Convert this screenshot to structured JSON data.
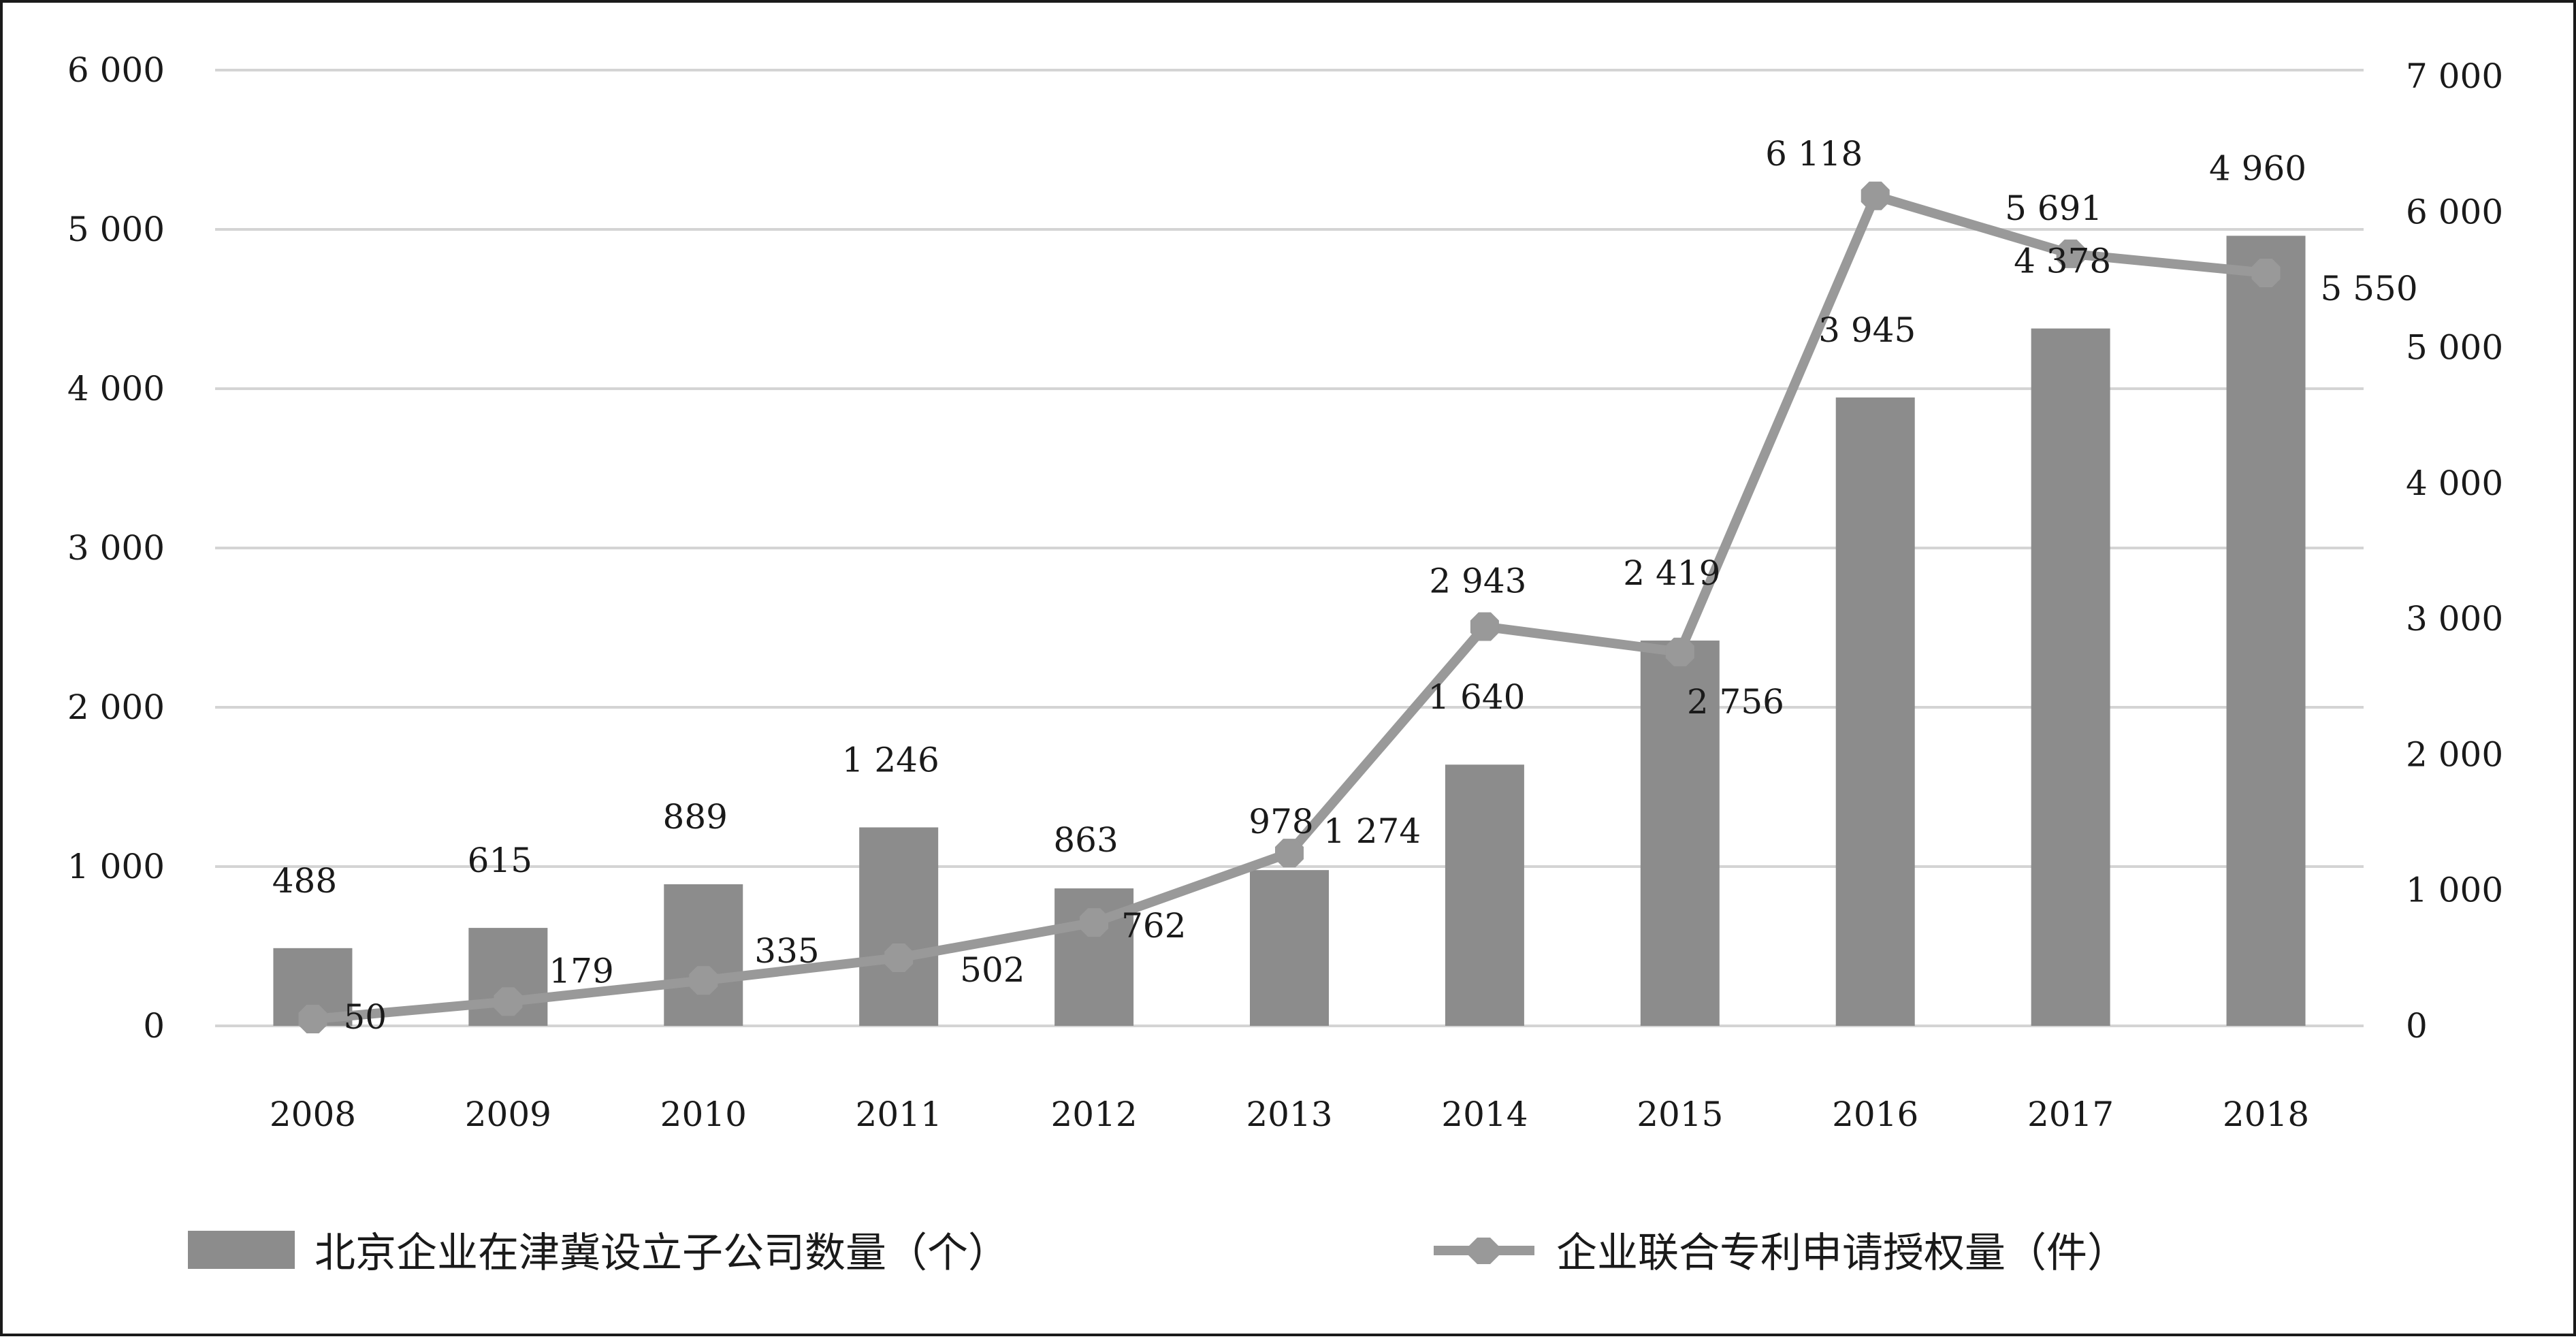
{
  "chart_data": {
    "type": "bar+line",
    "categories": [
      "2008",
      "2009",
      "2010",
      "2011",
      "2012",
      "2013",
      "2014",
      "2015",
      "2016",
      "2017",
      "2018"
    ],
    "series": [
      {
        "name": "北京企业在津冀设立子公司数量（个）",
        "type": "bar",
        "axis": "left",
        "color": "#8c8c8c",
        "values": [
          488,
          615,
          889,
          1246,
          863,
          978,
          1640,
          2419,
          3945,
          4378,
          4960
        ],
        "labels": [
          "488",
          "615",
          "889",
          "1 246",
          "863",
          "978",
          "1 640",
          "2 419",
          "3 945",
          "4 378",
          "4 960"
        ]
      },
      {
        "name": "企业联合专利申请授权量（件）",
        "type": "line",
        "axis": "right",
        "color": "#999999",
        "values": [
          50,
          179,
          335,
          502,
          762,
          1274,
          2943,
          2756,
          6118,
          5691,
          5550
        ],
        "labels": [
          "50",
          "179",
          "335",
          "502",
          "762",
          "1 274",
          "2 943",
          "2 756",
          "6 118",
          "5 691",
          "5 550"
        ]
      }
    ],
    "y_left": {
      "min": 0,
      "max": 6000,
      "ticks": [
        0,
        1000,
        2000,
        3000,
        4000,
        5000,
        6000
      ],
      "tick_labels": [
        "0",
        "1 000",
        "2 000",
        "3 000",
        "4 000",
        "5 000",
        "6 000"
      ]
    },
    "y_right": {
      "min": 0,
      "max": 7000,
      "ticks": [
        0,
        1000,
        2000,
        3000,
        4000,
        5000,
        6000,
        7000
      ],
      "tick_labels": [
        "0",
        "1 000",
        "2 000",
        "3 000",
        "4 000",
        "5 000",
        "6 000",
        "7 000"
      ]
    },
    "grid": true,
    "legend_position": "bottom"
  }
}
